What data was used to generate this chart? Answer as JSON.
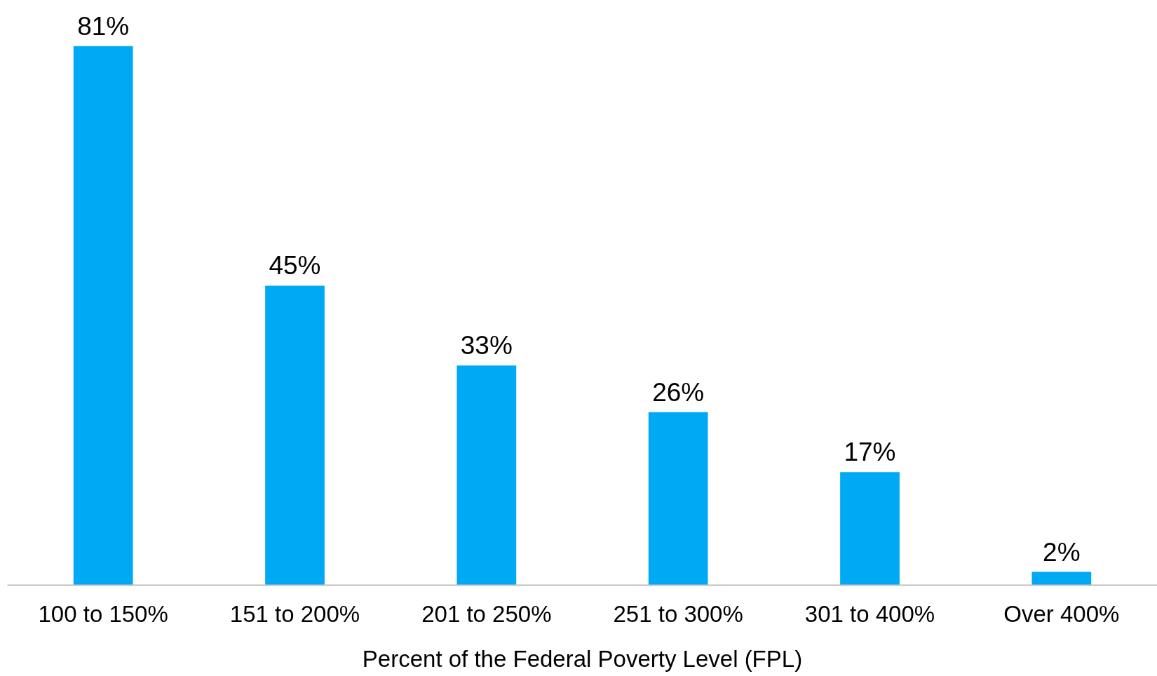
{
  "chart_data": {
    "type": "bar",
    "xlabel": "Percent of the Federal Poverty Level (FPL)",
    "categories": [
      "100 to 150%",
      "151 to 200%",
      "201 to 250%",
      "251 to 300%",
      "301 to 400%",
      "Over 400%"
    ],
    "values": [
      81,
      45,
      33,
      26,
      17,
      2
    ],
    "value_labels": [
      "81%",
      "45%",
      "33%",
      "26%",
      "17%",
      "2%"
    ],
    "color": "#00a9f4"
  }
}
